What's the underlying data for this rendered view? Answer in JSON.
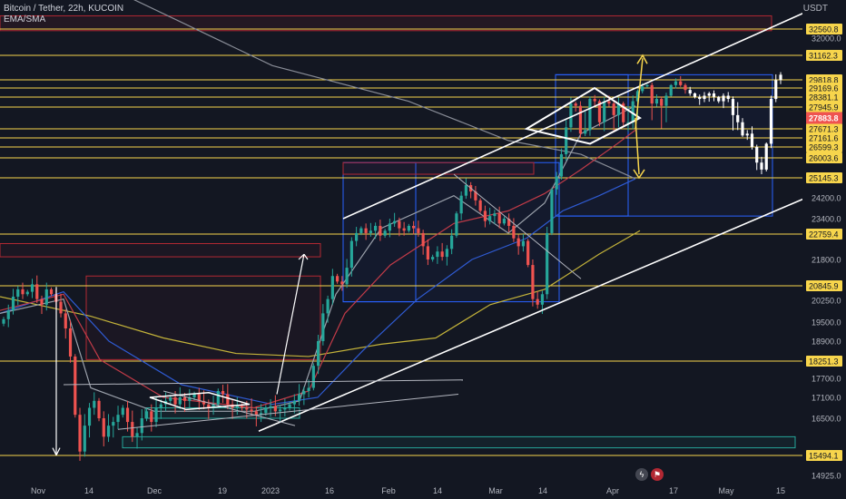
{
  "chart_data": {
    "type": "candlestick",
    "title": "Bitcoin / Tether, 22h, KUCOIN",
    "indicator": "EMA/SMA",
    "currency": "USDT",
    "ylim": [
      14600,
      33400
    ],
    "x_tick_labels": [
      "Nov",
      "14",
      "Dec",
      "19",
      "2023",
      "16",
      "Feb",
      "14",
      "Mar",
      "14",
      "Apr",
      "17",
      "May",
      "15"
    ],
    "y_tick_labels": [
      {
        "value": 32000,
        "label": "32000.0"
      },
      {
        "value": 24200,
        "label": "24200.0"
      },
      {
        "value": 23400,
        "label": "23400.0"
      },
      {
        "value": 21800,
        "label": "21800.0"
      },
      {
        "value": 20250,
        "label": "20250.0"
      },
      {
        "value": 19500,
        "label": "19500.0"
      },
      {
        "value": 18900,
        "label": "18900.0"
      },
      {
        "value": 17700,
        "label": "17700.0"
      },
      {
        "value": 17100,
        "label": "17100.0"
      },
      {
        "value": 16500,
        "label": "16500.0"
      },
      {
        "value": 14925,
        "label": "14925.0"
      }
    ],
    "price_levels": [
      {
        "value": 32560.8,
        "label": "32560.8"
      },
      {
        "value": 31162.3,
        "label": "31162.3"
      },
      {
        "value": 29818.8,
        "label": "29818.8"
      },
      {
        "value": 29169.6,
        "label": "29169.6"
      },
      {
        "value": 28381.1,
        "label": "28381.1"
      },
      {
        "value": 27945.9,
        "label": "27945.9"
      },
      {
        "value": 27671.3,
        "label": "27671.3"
      },
      {
        "value": 27161.6,
        "label": "27161.6"
      },
      {
        "value": 26599.3,
        "label": "26599.3"
      },
      {
        "value": 26003.6,
        "label": "26003.6"
      },
      {
        "value": 25145.3,
        "label": "25145.3"
      },
      {
        "value": 22759.4,
        "label": "22759.4"
      },
      {
        "value": 20845.9,
        "label": "20845.9"
      },
      {
        "value": 18251.3,
        "label": "18251.3"
      },
      {
        "value": 15494.1,
        "label": "15494.1"
      }
    ],
    "last_price": {
      "value": 27883.8,
      "label": "27883.8"
    },
    "series": [
      {
        "name": "BTCUSDT",
        "type": "candlestick",
        "closes": [
          19600,
          19900,
          20400,
          20700,
          20500,
          20600,
          20900,
          20300,
          20100,
          20700,
          20500,
          20200,
          19800,
          19300,
          18400,
          16600,
          15600,
          16300,
          16800,
          17000,
          16500,
          16000,
          16300,
          16400,
          16600,
          16800,
          16400,
          16000,
          16100,
          16500,
          16700,
          16400,
          16800,
          16900,
          17000,
          17100,
          16900,
          17100,
          17000,
          17100,
          17200,
          17000,
          16900,
          16800,
          16900,
          17300,
          17200,
          16900,
          16800,
          16850,
          16800,
          16750,
          16700,
          16600,
          16650,
          16800,
          16850,
          16700,
          16750,
          16800,
          16900,
          17000,
          17200,
          17300,
          17400,
          18100,
          18900,
          19800,
          20300,
          21200,
          21000,
          20900,
          21500,
          22500,
          22800,
          23000,
          22800,
          22900,
          23100,
          22700,
          22900,
          23200,
          23300,
          23000,
          22900,
          23100,
          23000,
          22800,
          22300,
          21800,
          21900,
          22100,
          21900,
          22200,
          22700,
          23600,
          24300,
          24800,
          24500,
          24100,
          23700,
          23300,
          23500,
          23600,
          23200,
          23400,
          23100,
          22600,
          22300,
          22500,
          21600,
          20300,
          20100,
          20500,
          22800,
          24600,
          25200,
          26200,
          27700,
          28100,
          28000,
          27400,
          27600,
          28300,
          28200,
          27800,
          28200,
          28100,
          27900,
          28100,
          27800,
          27800,
          28200,
          28900,
          29300,
          29400,
          28100,
          28300,
          28000,
          28500,
          29400,
          29700,
          29400,
          29000,
          28700,
          28400,
          28300,
          28500,
          28700,
          28400,
          28200,
          28500,
          28300,
          27900,
          27800,
          27300,
          27400,
          26600,
          25800,
          25500,
          26800,
          28300,
          29800,
          30100
        ],
        "note": "approximate closes read from chart"
      }
    ],
    "grid": false,
    "legend_placement": "top-left"
  }
}
